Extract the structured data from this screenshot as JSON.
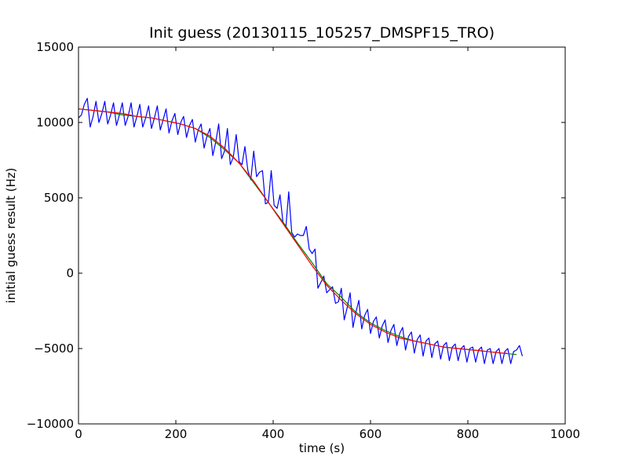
{
  "chart_data": {
    "type": "line",
    "title": "Init guess (20130115_105257_DMSPF15_TRO)",
    "xlabel": "time (s)",
    "ylabel": "initial guess result (Hz)",
    "xlim": [
      0,
      1000
    ],
    "ylim": [
      -10000,
      15000
    ],
    "x_ticks": [
      0,
      200,
      400,
      600,
      800,
      1000
    ],
    "y_ticks": [
      -10000,
      -5000,
      0,
      5000,
      10000,
      15000
    ],
    "grid": false,
    "legend": "none",
    "series": [
      {
        "color": "#0000ff",
        "x": [
          0,
          6,
          12,
          18,
          24,
          30,
          36,
          42,
          48,
          54,
          60,
          66,
          72,
          78,
          84,
          90,
          96,
          102,
          108,
          114,
          120,
          126,
          132,
          138,
          144,
          150,
          156,
          162,
          168,
          174,
          180,
          186,
          192,
          198,
          204,
          210,
          216,
          222,
          228,
          234,
          240,
          246,
          252,
          258,
          264,
          270,
          276,
          282,
          288,
          294,
          300,
          306,
          312,
          318,
          324,
          330,
          336,
          342,
          348,
          354,
          360,
          366,
          372,
          378,
          384,
          390,
          396,
          402,
          408,
          414,
          420,
          426,
          432,
          438,
          444,
          450,
          456,
          462,
          468,
          474,
          480,
          486,
          492,
          498,
          504,
          510,
          516,
          522,
          528,
          534,
          540,
          546,
          552,
          558,
          564,
          570,
          576,
          582,
          588,
          594,
          600,
          606,
          612,
          618,
          624,
          630,
          636,
          642,
          648,
          654,
          660,
          666,
          672,
          678,
          684,
          690,
          696,
          702,
          708,
          714,
          720,
          726,
          732,
          738,
          744,
          750,
          756,
          762,
          768,
          774,
          780,
          786,
          792,
          798,
          804,
          810,
          816,
          822,
          828,
          834,
          840,
          846,
          852,
          858,
          864,
          870,
          876,
          882,
          888,
          894,
          900,
          906,
          912
        ],
        "y": [
          10300,
          10500,
          11200,
          11600,
          9700,
          10400,
          11400,
          10000,
          10600,
          11400,
          9900,
          10500,
          11300,
          9800,
          10500,
          11300,
          9800,
          10400,
          11300,
          9700,
          10400,
          11200,
          9700,
          10300,
          11100,
          9600,
          10300,
          11100,
          9500,
          10200,
          10900,
          9300,
          10100,
          10600,
          9200,
          10000,
          10400,
          9000,
          9800,
          10200,
          8700,
          9500,
          9900,
          8300,
          9100,
          9600,
          7800,
          8700,
          9900,
          7600,
          8100,
          9600,
          7200,
          7700,
          9200,
          7400,
          7200,
          8400,
          6800,
          6200,
          8100,
          6400,
          6700,
          6800,
          4600,
          4700,
          6800,
          4500,
          4300,
          5200,
          3400,
          3000,
          5400,
          2700,
          2400,
          2600,
          2500,
          2500,
          3100,
          1600,
          1300,
          1600,
          -1000,
          -600,
          -200,
          -1300,
          -1100,
          -900,
          -2000,
          -1900,
          -1000,
          -3100,
          -2300,
          -1300,
          -3600,
          -2600,
          -1800,
          -3700,
          -2800,
          -2400,
          -4000,
          -3200,
          -2900,
          -4300,
          -3500,
          -3100,
          -4600,
          -3800,
          -3400,
          -4800,
          -4000,
          -3600,
          -5100,
          -4200,
          -3900,
          -5300,
          -4400,
          -4100,
          -5500,
          -4500,
          -4300,
          -5600,
          -4700,
          -4500,
          -5700,
          -4800,
          -4600,
          -5800,
          -4900,
          -4700,
          -5800,
          -5000,
          -4800,
          -5900,
          -5000,
          -4900,
          -5900,
          -5100,
          -4900,
          -6000,
          -5100,
          -5000,
          -6000,
          -5200,
          -5000,
          -6000,
          -5200,
          -5000,
          -6000,
          -5200,
          -5100,
          -4800,
          -5500
        ]
      },
      {
        "color": "#008000",
        "x": [
          0,
          30,
          60,
          90,
          120,
          150,
          180,
          210,
          240,
          270,
          300,
          330,
          360,
          390,
          420,
          450,
          480,
          510,
          540,
          570,
          600,
          630,
          660,
          690,
          720,
          750,
          780,
          810,
          840,
          870,
          900
        ],
        "y": [
          10900,
          10800,
          10700,
          10500,
          10400,
          10300,
          10100,
          9900,
          9600,
          9000,
          8200,
          7300,
          6000,
          4700,
          3400,
          2000,
          700,
          -700,
          -1600,
          -2600,
          -3300,
          -3800,
          -4200,
          -4500,
          -4700,
          -4900,
          -5000,
          -5100,
          -5200,
          -5300,
          -5400
        ]
      },
      {
        "color": "#ff0000",
        "x": [
          0,
          30,
          60,
          90,
          120,
          150,
          180,
          210,
          240,
          270,
          300,
          330,
          360,
          390,
          420,
          450,
          480,
          510,
          540,
          570,
          600,
          630,
          660,
          690,
          720,
          750,
          780,
          810,
          840,
          870,
          880
        ],
        "y": [
          10900,
          10800,
          10700,
          10600,
          10400,
          10300,
          10100,
          9900,
          9600,
          9100,
          8300,
          7300,
          6100,
          4700,
          3300,
          1900,
          500,
          -800,
          -1800,
          -2700,
          -3400,
          -3900,
          -4300,
          -4500,
          -4700,
          -4900,
          -5000,
          -5100,
          -5200,
          -5300,
          -5300
        ]
      }
    ]
  }
}
